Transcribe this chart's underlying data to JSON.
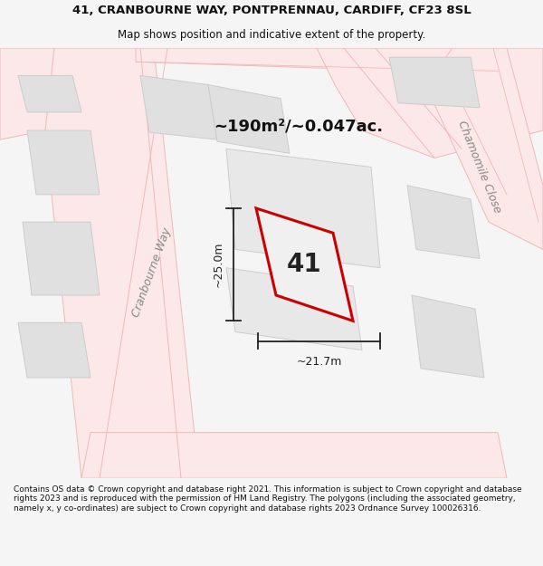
{
  "title_line1": "41, CRANBOURNE WAY, PONTPRENNAU, CARDIFF, CF23 8SL",
  "title_line2": "Map shows position and indicative extent of the property.",
  "area_text": "~190m²/~0.047ac.",
  "property_number": "41",
  "dim_width": "~21.7m",
  "dim_height": "~25.0m",
  "footer": "Contains OS data © Crown copyright and database right 2021. This information is subject to Crown copyright and database rights 2023 and is reproduced with the permission of HM Land Registry. The polygons (including the associated geometry, namely x, y co-ordinates) are subject to Crown copyright and database rights 2023 Ordnance Survey 100026316.",
  "bg_color": "#f5f5f5",
  "map_bg": "#f8f8f8",
  "road_fill": "#fce8e8",
  "road_edge": "#f0b8b8",
  "block_fill": "#e0e0e0",
  "block_edge": "#cccccc",
  "property_fill": "#f0f0f0",
  "property_outline": "#cc0000",
  "dim_color": "#222222",
  "title_color": "#111111",
  "footer_color": "#111111",
  "street_label_cranbourne": "Cranbourne Way",
  "street_label_chamomile": "Chamomile Close"
}
